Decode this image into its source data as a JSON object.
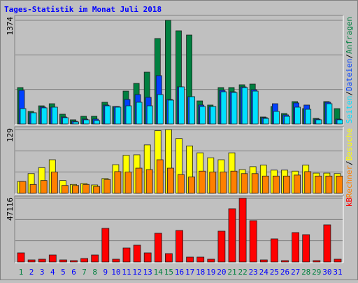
{
  "chart_data": [
    {
      "type": "bar",
      "title": "Tages-Statistik im Monat Juli 2018",
      "title_color": "#0000ff",
      "legend_separator": "/",
      "series": [
        {
          "name": "Anfragen",
          "color": "#008040",
          "values": [
            483,
            167,
            241,
            269,
            130,
            56,
            102,
            102,
            288,
            232,
            436,
            538,
            687,
            1133,
            1374,
            1235,
            1179,
            306,
            251,
            483,
            483,
            520,
            529,
            93,
            232,
            139,
            297,
            204,
            74,
            297,
            204
          ]
        },
        {
          "name": "Dateien",
          "color": "#0040ff",
          "values": [
            446,
            149,
            225,
            223,
            93,
            37,
            65,
            65,
            251,
            232,
            325,
            390,
            353,
            641,
            325,
            492,
            362,
            251,
            232,
            446,
            427,
            492,
            455,
            84,
            269,
            121,
            279,
            251,
            65,
            288,
            65
          ]
        },
        {
          "name": "Seiten",
          "color": "#00e0ff",
          "values": [
            204,
            149,
            214,
            223,
            84,
            28,
            56,
            46,
            241,
            223,
            241,
            288,
            241,
            390,
            316,
            492,
            362,
            232,
            232,
            427,
            418,
            483,
            436,
            74,
            167,
            102,
            223,
            195,
            56,
            269,
            56
          ]
        }
      ],
      "ylim": [
        0,
        1374
      ],
      "yticks": [
        1374
      ]
    },
    {
      "type": "bar",
      "series": [
        {
          "name": "Besuche",
          "color": "#ffff00",
          "values": [
            24,
            40,
            52,
            68,
            26,
            18,
            20,
            17,
            30,
            58,
            77,
            78,
            98,
            127,
            129,
            111,
            96,
            82,
            72,
            68,
            82,
            48,
            54,
            57,
            47,
            47,
            45,
            57,
            41,
            41,
            40
          ]
        },
        {
          "name": "Rechner",
          "color": "#ff8000",
          "values": [
            24,
            18,
            26,
            43,
            16,
            16,
            18,
            14,
            28,
            44,
            43,
            51,
            48,
            68,
            51,
            38,
            33,
            45,
            43,
            43,
            45,
            40,
            40,
            35,
            35,
            35,
            37,
            44,
            35,
            35,
            35
          ]
        }
      ],
      "ylim": [
        0,
        129
      ],
      "yticks": [
        129
      ]
    },
    {
      "type": "bar",
      "categories": [
        "1",
        "2",
        "3",
        "4",
        "5",
        "6",
        "7",
        "8",
        "9",
        "10",
        "11",
        "12",
        "13",
        "14",
        "15",
        "16",
        "17",
        "18",
        "19",
        "20",
        "21",
        "22",
        "23",
        "24",
        "25",
        "26",
        "27",
        "28",
        "29",
        "30",
        "31"
      ],
      "category_colors": [
        "#008040",
        "#0000ff",
        "#0000ff",
        "#0000ff",
        "#0000ff",
        "#0000ff",
        "#008040",
        "#008040",
        "#0000ff",
        "#0000ff",
        "#0000ff",
        "#0000ff",
        "#0000ff",
        "#008040",
        "#008040",
        "#0000ff",
        "#0000ff",
        "#0000ff",
        "#0000ff",
        "#0000ff",
        "#008040",
        "#008040",
        "#0000ff",
        "#0000ff",
        "#0000ff",
        "#0000ff",
        "#0000ff",
        "#008040",
        "#008040",
        "#0000ff",
        "#0000ff"
      ],
      "series": [
        {
          "name": "kB",
          "color": "#ff0000",
          "values": [
            6734,
            1554,
            2072,
            5180,
            1554,
            1036,
            2590,
            5180,
            24864,
            2072,
            10360,
            12432,
            6734,
            21238,
            6216,
            23310,
            3626,
            3626,
            2072,
            22792,
            39368,
            47116,
            30562,
            1554,
            17094,
            1036,
            21756,
            20202,
            1036,
            27454,
            2072
          ]
        }
      ],
      "ylim": [
        0,
        47116
      ],
      "yticks": [
        47116
      ]
    }
  ]
}
